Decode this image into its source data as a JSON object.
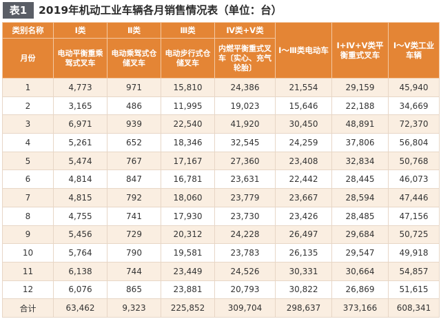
{
  "tag": "表1",
  "title": "2019年机动工业车辆各月销售情况表（单位：台）",
  "header_row1": [
    "类别名称",
    "Ⅰ类",
    "Ⅱ类",
    "Ⅲ类",
    "Ⅳ类+Ⅴ类",
    "Ⅰ～Ⅲ类电动车",
    "Ⅰ+Ⅳ+Ⅴ类平衡重式叉车",
    "Ⅰ～Ⅴ类工业车辆"
  ],
  "header_row2": [
    "月份",
    "电动平衡重乘驾式叉车",
    "电动乘驾式仓储叉车",
    "电动步行式仓储叉车",
    "内燃平衡重式叉车〔实心、充气轮胎〕"
  ],
  "rows": [
    [
      "1",
      "4,773",
      "971",
      "15,810",
      "24,386",
      "21,554",
      "29,159",
      "45,940"
    ],
    [
      "2",
      "3,165",
      "486",
      "11,995",
      "19,023",
      "15,646",
      "22,188",
      "34,669"
    ],
    [
      "3",
      "6,971",
      "939",
      "22,540",
      "41,920",
      "30,450",
      "48,891",
      "72,370"
    ],
    [
      "4",
      "5,261",
      "652",
      "18,346",
      "32,545",
      "24,259",
      "37,806",
      "56,804"
    ],
    [
      "5",
      "5,474",
      "767",
      "17,167",
      "27,360",
      "23,408",
      "32,834",
      "50,768"
    ],
    [
      "6",
      "4,814",
      "847",
      "16,781",
      "23,631",
      "22,442",
      "28,445",
      "46,073"
    ],
    [
      "7",
      "4,815",
      "792",
      "18,060",
      "23,779",
      "23,667",
      "28,594",
      "47,446"
    ],
    [
      "8",
      "4,755",
      "741",
      "17,930",
      "23,730",
      "23,426",
      "28,485",
      "47,156"
    ],
    [
      "9",
      "5,456",
      "729",
      "20,312",
      "24,228",
      "26,497",
      "29,684",
      "50,725"
    ],
    [
      "10",
      "5,764",
      "790",
      "19,581",
      "23,783",
      "26,135",
      "29,547",
      "49,918"
    ],
    [
      "11",
      "6,138",
      "744",
      "23,449",
      "24,526",
      "30,331",
      "30,664",
      "54,857"
    ],
    [
      "12",
      "6,076",
      "865",
      "23,881",
      "20,793",
      "30,822",
      "26,869",
      "51,615"
    ]
  ],
  "total": [
    "合计",
    "63,462",
    "9,323",
    "225,852",
    "309,704",
    "298,637",
    "373,166",
    "608,341"
  ]
}
